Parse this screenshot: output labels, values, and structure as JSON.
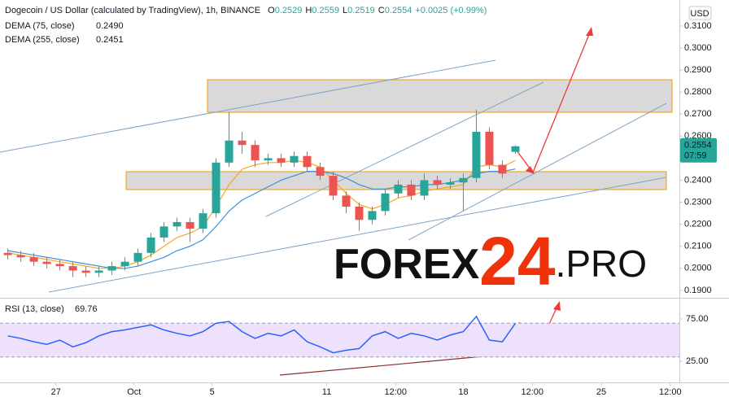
{
  "chart_data": [
    {
      "type": "candlestick",
      "title": "Dogecoin / US Dollar (calculated by TradingView), 1h, BINANCE",
      "ohlc": [
        {
          "key": "O",
          "label": "0.2529"
        },
        {
          "key": "H",
          "label": "0.2559"
        },
        {
          "key": "L",
          "label": "0.2519"
        },
        {
          "key": "C",
          "label": "0.2554"
        }
      ],
      "change": "+0.0025 (+0.99%)",
      "currency": "USD",
      "countdown": "07:59",
      "x": [
        0,
        1,
        2,
        3,
        4,
        5,
        6,
        7,
        8,
        9,
        10,
        11,
        12,
        13,
        14,
        15,
        16,
        17,
        18,
        19,
        20,
        21,
        22,
        23,
        24,
        25,
        26,
        27,
        28,
        29,
        30,
        31,
        32,
        33,
        34,
        35,
        36,
        37,
        38,
        39
      ],
      "open": [
        0.207,
        0.206,
        0.205,
        0.203,
        0.202,
        0.201,
        0.199,
        0.198,
        0.199,
        0.201,
        0.203,
        0.207,
        0.214,
        0.219,
        0.221,
        0.218,
        0.225,
        0.248,
        0.258,
        0.256,
        0.249,
        0.25,
        0.248,
        0.251,
        0.246,
        0.242,
        0.233,
        0.228,
        0.222,
        0.226,
        0.234,
        0.238,
        0.233,
        0.24,
        0.238,
        0.239,
        0.241,
        0.262,
        0.247,
        0.2529
      ],
      "high": [
        0.209,
        0.208,
        0.207,
        0.205,
        0.204,
        0.203,
        0.201,
        0.201,
        0.203,
        0.205,
        0.209,
        0.216,
        0.221,
        0.223,
        0.223,
        0.227,
        0.25,
        0.271,
        0.262,
        0.258,
        0.252,
        0.252,
        0.253,
        0.253,
        0.248,
        0.244,
        0.235,
        0.23,
        0.228,
        0.236,
        0.24,
        0.24,
        0.243,
        0.242,
        0.241,
        0.243,
        0.272,
        0.264,
        0.249,
        0.2559
      ],
      "low": [
        0.204,
        0.203,
        0.201,
        0.2,
        0.199,
        0.196,
        0.196,
        0.196,
        0.197,
        0.199,
        0.201,
        0.205,
        0.212,
        0.217,
        0.212,
        0.216,
        0.223,
        0.246,
        0.252,
        0.246,
        0.247,
        0.246,
        0.246,
        0.244,
        0.24,
        0.231,
        0.225,
        0.217,
        0.22,
        0.224,
        0.232,
        0.231,
        0.231,
        0.236,
        0.236,
        0.226,
        0.239,
        0.245,
        0.241,
        0.2519
      ],
      "close": [
        0.206,
        0.205,
        0.203,
        0.202,
        0.201,
        0.199,
        0.198,
        0.199,
        0.201,
        0.203,
        0.207,
        0.214,
        0.219,
        0.221,
        0.218,
        0.225,
        0.248,
        0.258,
        0.256,
        0.249,
        0.25,
        0.248,
        0.251,
        0.246,
        0.242,
        0.233,
        0.228,
        0.222,
        0.226,
        0.234,
        0.238,
        0.233,
        0.24,
        0.238,
        0.239,
        0.241,
        0.262,
        0.247,
        0.243,
        0.2554
      ],
      "up_color": "#26a69a",
      "down_color": "#ef5350",
      "series": [
        {
          "name": "DEMA (75, close)",
          "color": "#f5a623",
          "value_label": "0.2490",
          "values": [
            0.207,
            0.206,
            0.205,
            0.204,
            0.203,
            0.202,
            0.201,
            0.2,
            0.2,
            0.201,
            0.203,
            0.206,
            0.21,
            0.214,
            0.216,
            0.219,
            0.228,
            0.238,
            0.245,
            0.247,
            0.248,
            0.248,
            0.249,
            0.248,
            0.246,
            0.24,
            0.234,
            0.229,
            0.227,
            0.229,
            0.232,
            0.233,
            0.235,
            0.236,
            0.237,
            0.238,
            0.246,
            0.247,
            0.246,
            0.249
          ]
        },
        {
          "name": "DEMA (255, close)",
          "color": "#3d8fd6",
          "value_label": "0.2451",
          "values": [
            0.208,
            0.207,
            0.206,
            0.205,
            0.204,
            0.203,
            0.202,
            0.201,
            0.2,
            0.2,
            0.201,
            0.203,
            0.205,
            0.208,
            0.21,
            0.213,
            0.219,
            0.226,
            0.231,
            0.234,
            0.237,
            0.24,
            0.242,
            0.244,
            0.244,
            0.243,
            0.241,
            0.238,
            0.236,
            0.236,
            0.237,
            0.237,
            0.238,
            0.238,
            0.239,
            0.24,
            0.243,
            0.244,
            0.244,
            0.2451
          ]
        }
      ],
      "xlim": [
        -0.6,
        51.6
      ],
      "xticks": [
        {
          "value": 3.7,
          "label": "27"
        },
        {
          "value": 9.7,
          "label": "Oct"
        },
        {
          "value": 15.7,
          "label": "5"
        },
        {
          "value": 24.5,
          "label": "11"
        },
        {
          "value": 29.8,
          "label": "12:00"
        },
        {
          "value": 35,
          "label": "18"
        },
        {
          "value": 40.3,
          "label": "12:00"
        },
        {
          "value": 45.6,
          "label": "25"
        },
        {
          "value": 50.9,
          "label": "12:00"
        }
      ],
      "ylim": [
        0.187,
        0.3218
      ],
      "yticks": [
        {
          "value": 0.19,
          "label": "0.1900"
        },
        {
          "value": 0.2,
          "label": "0.2000"
        },
        {
          "value": 0.21,
          "label": "0.2100"
        },
        {
          "value": 0.22,
          "label": "0.2200"
        },
        {
          "value": 0.23,
          "label": "0.2300"
        },
        {
          "value": 0.24,
          "label": "0.2400"
        },
        {
          "value": 0.25,
          "label": "0.2500"
        },
        {
          "value": 0.26,
          "label": "0.2600"
        },
        {
          "value": 0.27,
          "label": "0.2700"
        },
        {
          "value": 0.28,
          "label": "0.2800"
        },
        {
          "value": 0.29,
          "label": "0.2900"
        },
        {
          "value": 0.3,
          "label": "0.3000"
        },
        {
          "value": 0.31,
          "label": "0.3100"
        }
      ],
      "watermark": [
        "FOREX",
        "24",
        ".PRO"
      ]
    },
    {
      "type": "line",
      "title": "RSI (13, close)",
      "color": "#2962ff",
      "x": [
        0,
        1,
        2,
        3,
        4,
        5,
        6,
        7,
        8,
        9,
        10,
        11,
        12,
        13,
        14,
        15,
        16,
        17,
        18,
        19,
        20,
        21,
        22,
        23,
        24,
        25,
        26,
        27,
        28,
        29,
        30,
        31,
        32,
        33,
        34,
        35,
        36,
        37,
        38,
        39
      ],
      "values": [
        55,
        52,
        48,
        45,
        50,
        42,
        47,
        55,
        60,
        62,
        65,
        68,
        62,
        58,
        55,
        60,
        70,
        72,
        60,
        52,
        58,
        55,
        62,
        48,
        42,
        35,
        38,
        40,
        55,
        60,
        52,
        58,
        55,
        50,
        56,
        60,
        78,
        50,
        48,
        69.76
      ],
      "band": [
        30,
        70
      ],
      "band_color": "#ede1fb",
      "xlim": [
        -0.6,
        51.6
      ],
      "ylim": [
        1.9,
        98.1
      ],
      "yticks": [
        {
          "value": 25,
          "label": "25.00"
        },
        {
          "value": 75,
          "label": "75.00"
        }
      ]
    }
  ]
}
